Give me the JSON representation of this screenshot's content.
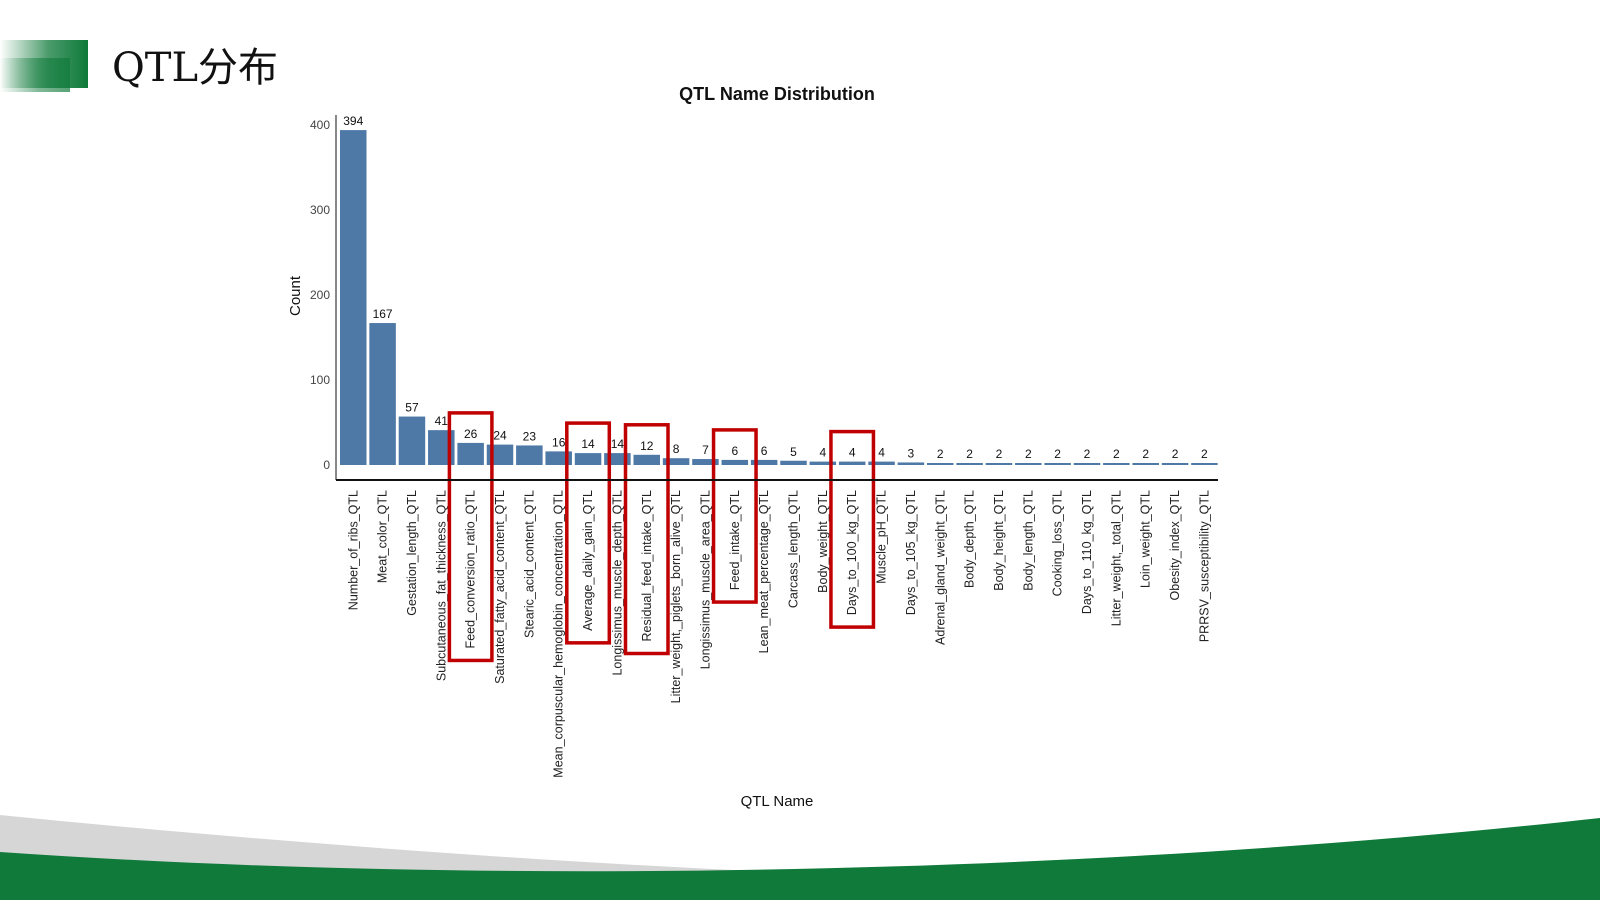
{
  "slide": {
    "title": "QTL分布"
  },
  "colors": {
    "bar": "#4e79a7",
    "highlight": "#c00000",
    "brand_green": "#0f7a3a"
  },
  "chart_data": {
    "type": "bar",
    "title": "QTL Name Distribution",
    "xlabel": "QTL Name",
    "ylabel": "Count",
    "ylim": [
      0,
      400
    ],
    "yticks": [
      0,
      100,
      200,
      300,
      400
    ],
    "grid": false,
    "categories": [
      "Number_of_ribs_QTL",
      "Meat_color_QTL",
      "Gestation_length_QTL",
      "Subcutaneous_fat_thickness_QTL",
      "Feed_conversion_ratio_QTL",
      "Saturated_fatty_acid_content_QTL",
      "Stearic_acid_content_QTL",
      "Mean_corpuscular_hemoglobin_concentration_QTL",
      "Average_daily_gain_QTL",
      "Longissimus_muscle_depth_QTL",
      "Residual_feed_intake_QTL",
      "Litter_weight,_piglets_born_alive_QTL",
      "Longissimus_muscle_area_QTL",
      "Feed_intake_QTL",
      "Lean_meat_percentage_QTL",
      "Carcass_length_QTL",
      "Body_weight_QTL",
      "Days_to_100_kg_QTL",
      "Muscle_pH_QTL",
      "Days_to_105_kg_QTL",
      "Adrenal_gland_weight_QTL",
      "Body_depth_QTL",
      "Body_height_QTL",
      "Body_length_QTL",
      "Cooking_loss_QTL",
      "Days_to_110_kg_QTL",
      "Litter_weight,_total_QTL",
      "Loin_weight_QTL",
      "Obesity_index_QTL",
      "PRRSV_susceptibility_QTL"
    ],
    "values": [
      394,
      167,
      57,
      41,
      26,
      24,
      23,
      16,
      14,
      14,
      12,
      8,
      7,
      6,
      6,
      5,
      4,
      4,
      4,
      3,
      2,
      2,
      2,
      2,
      2,
      2,
      2,
      2,
      2,
      2
    ],
    "highlighted": [
      "Feed_conversion_ratio_QTL",
      "Average_daily_gain_QTL",
      "Residual_feed_intake_QTL",
      "Feed_intake_QTL",
      "Days_to_100_kg_QTL"
    ]
  }
}
